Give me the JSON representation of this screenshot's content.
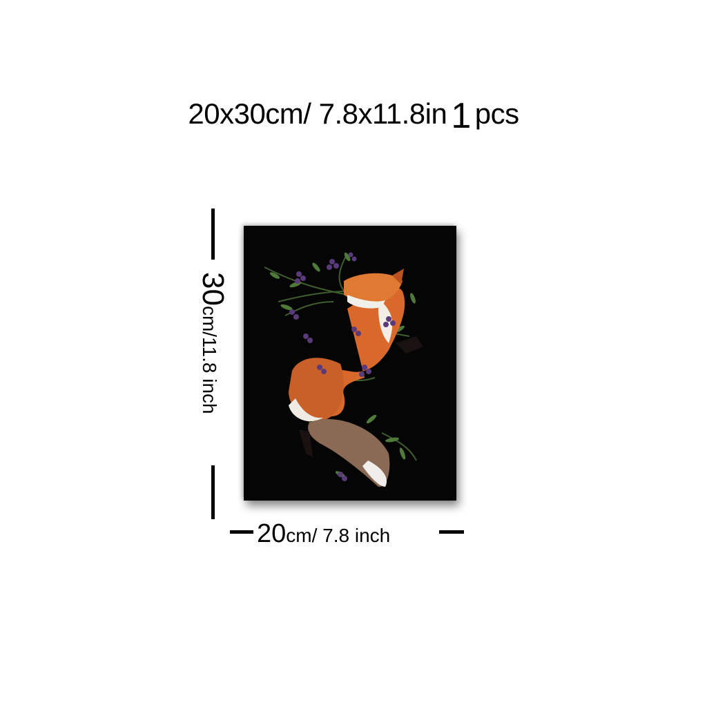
{
  "header": {
    "size_text": "20x30cm/ 7.8x11.8in",
    "quantity_number": "1",
    "quantity_unit": "pcs"
  },
  "dimensions": {
    "height_number": "30",
    "height_unit": "cm/11.8 inch",
    "width_number": "20",
    "width_unit": "cm/ 7.8 inch"
  },
  "artwork": {
    "subject": "fox-with-berry-vines",
    "background_color": "#050505",
    "fox_color": "#d9692a",
    "berry_color": "#5a3a7a",
    "leaf_color": "#4f7a3a"
  }
}
